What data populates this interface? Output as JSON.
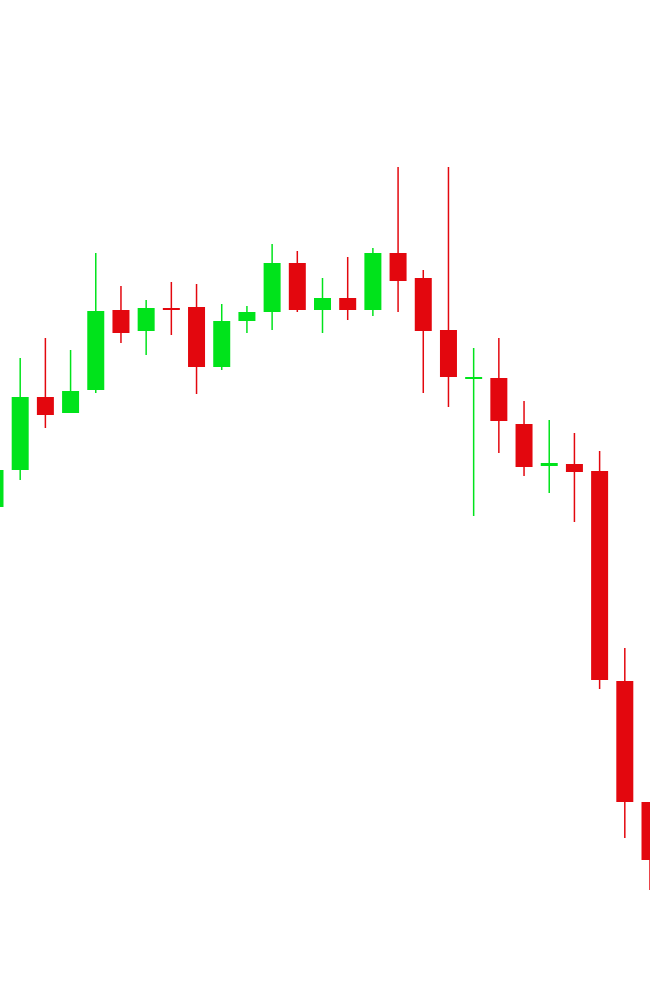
{
  "chart_data": {
    "type": "candlestick",
    "categories": [
      null,
      null,
      null,
      null,
      null,
      null,
      null,
      null,
      null,
      null,
      null,
      null,
      null,
      null,
      null,
      null,
      null,
      null,
      null,
      null,
      null,
      null,
      null,
      null,
      null,
      null,
      null
    ],
    "open": [
      493,
      530,
      603,
      587,
      610,
      690,
      669,
      692,
      693,
      633,
      679,
      688,
      737,
      690,
      702,
      690,
      747,
      722,
      670,
      622,
      622,
      576,
      534,
      536,
      529,
      319,
      198
    ],
    "high": [
      530,
      642,
      662,
      650,
      747,
      714,
      700,
      718,
      716,
      696,
      694,
      756,
      749,
      722,
      743,
      752,
      833,
      730,
      833,
      652,
      662,
      599,
      580,
      567,
      549,
      352,
      198
    ],
    "low": [
      493,
      520,
      572,
      587,
      607,
      657,
      645,
      665,
      606,
      630,
      667,
      670,
      688,
      667,
      680,
      684,
      688,
      607,
      593,
      484,
      547,
      524,
      507,
      478,
      311,
      162,
      110
    ],
    "close": [
      530,
      603,
      585,
      609,
      689,
      667,
      692,
      690,
      633,
      679,
      688,
      737,
      690,
      702,
      690,
      747,
      719,
      669,
      623,
      623,
      579,
      533,
      537,
      528,
      320,
      198,
      140
    ],
    "up_color": "#00e31b",
    "down_color": "#e3070e",
    "ylim": [
      0,
      1000
    ]
  }
}
